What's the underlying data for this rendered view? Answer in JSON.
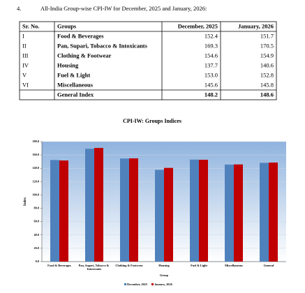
{
  "heading": {
    "number": "4.",
    "text": "All-India Group-wise CPI-IW for December, 2025 and January, 2026:"
  },
  "table": {
    "columns": [
      "Sr. No.",
      "Groups",
      "December, 2025",
      "January, 2026"
    ],
    "rows": [
      [
        "I",
        "Food & Beverages",
        "152.4",
        "151.7"
      ],
      [
        "II",
        "Pan, Supari, Tobacco & Intoxicants",
        "169.3",
        "170.5"
      ],
      [
        "III",
        "Clothing & Footwear",
        "154.6",
        "154.9"
      ],
      [
        "IV",
        "Housing",
        "137.7",
        "140.6"
      ],
      [
        "V",
        "Fuel & Light",
        "153.0",
        "152.8"
      ],
      [
        "VI",
        "Miscellaneous",
        "145.6",
        "145.8"
      ]
    ],
    "total": [
      "General Index",
      "148.2",
      "148.6"
    ]
  },
  "chart_data": {
    "type": "bar",
    "title": "CPI-IW: Groups Indices",
    "x_label": "Group",
    "y_label": "Index",
    "categories": [
      "Food & Beverages",
      "Pan, Supari, Tobacco & Intoxicants",
      "Clothing & Footwear",
      "Housing",
      "Fuel & Light",
      "Miscellaneous",
      "General"
    ],
    "series": [
      {
        "name": "December, 2025",
        "color": "#4f81bd",
        "values": [
          152.4,
          169.3,
          154.6,
          137.7,
          153.0,
          145.6,
          148.2
        ]
      },
      {
        "name": "January, 2026",
        "color": "#c00000",
        "values": [
          151.7,
          170.5,
          154.9,
          140.6,
          152.8,
          145.8,
          148.6
        ]
      }
    ],
    "ylim": [
      0,
      180
    ],
    "yticks": [
      {
        "value": 0,
        "label": "0.0"
      },
      {
        "value": 20,
        "label": "20.0"
      },
      {
        "value": 40,
        "label": "40.0"
      },
      {
        "value": 60,
        "label": "60.0"
      },
      {
        "value": 80,
        "label": "80.0"
      },
      {
        "value": 100,
        "label": "100.0"
      },
      {
        "value": 120,
        "label": "120.0"
      },
      {
        "value": 140,
        "label": "140.0"
      },
      {
        "value": 160,
        "label": "160.0"
      },
      {
        "value": 180,
        "label": "180.0"
      }
    ],
    "grid": true,
    "legend": "bottom"
  }
}
